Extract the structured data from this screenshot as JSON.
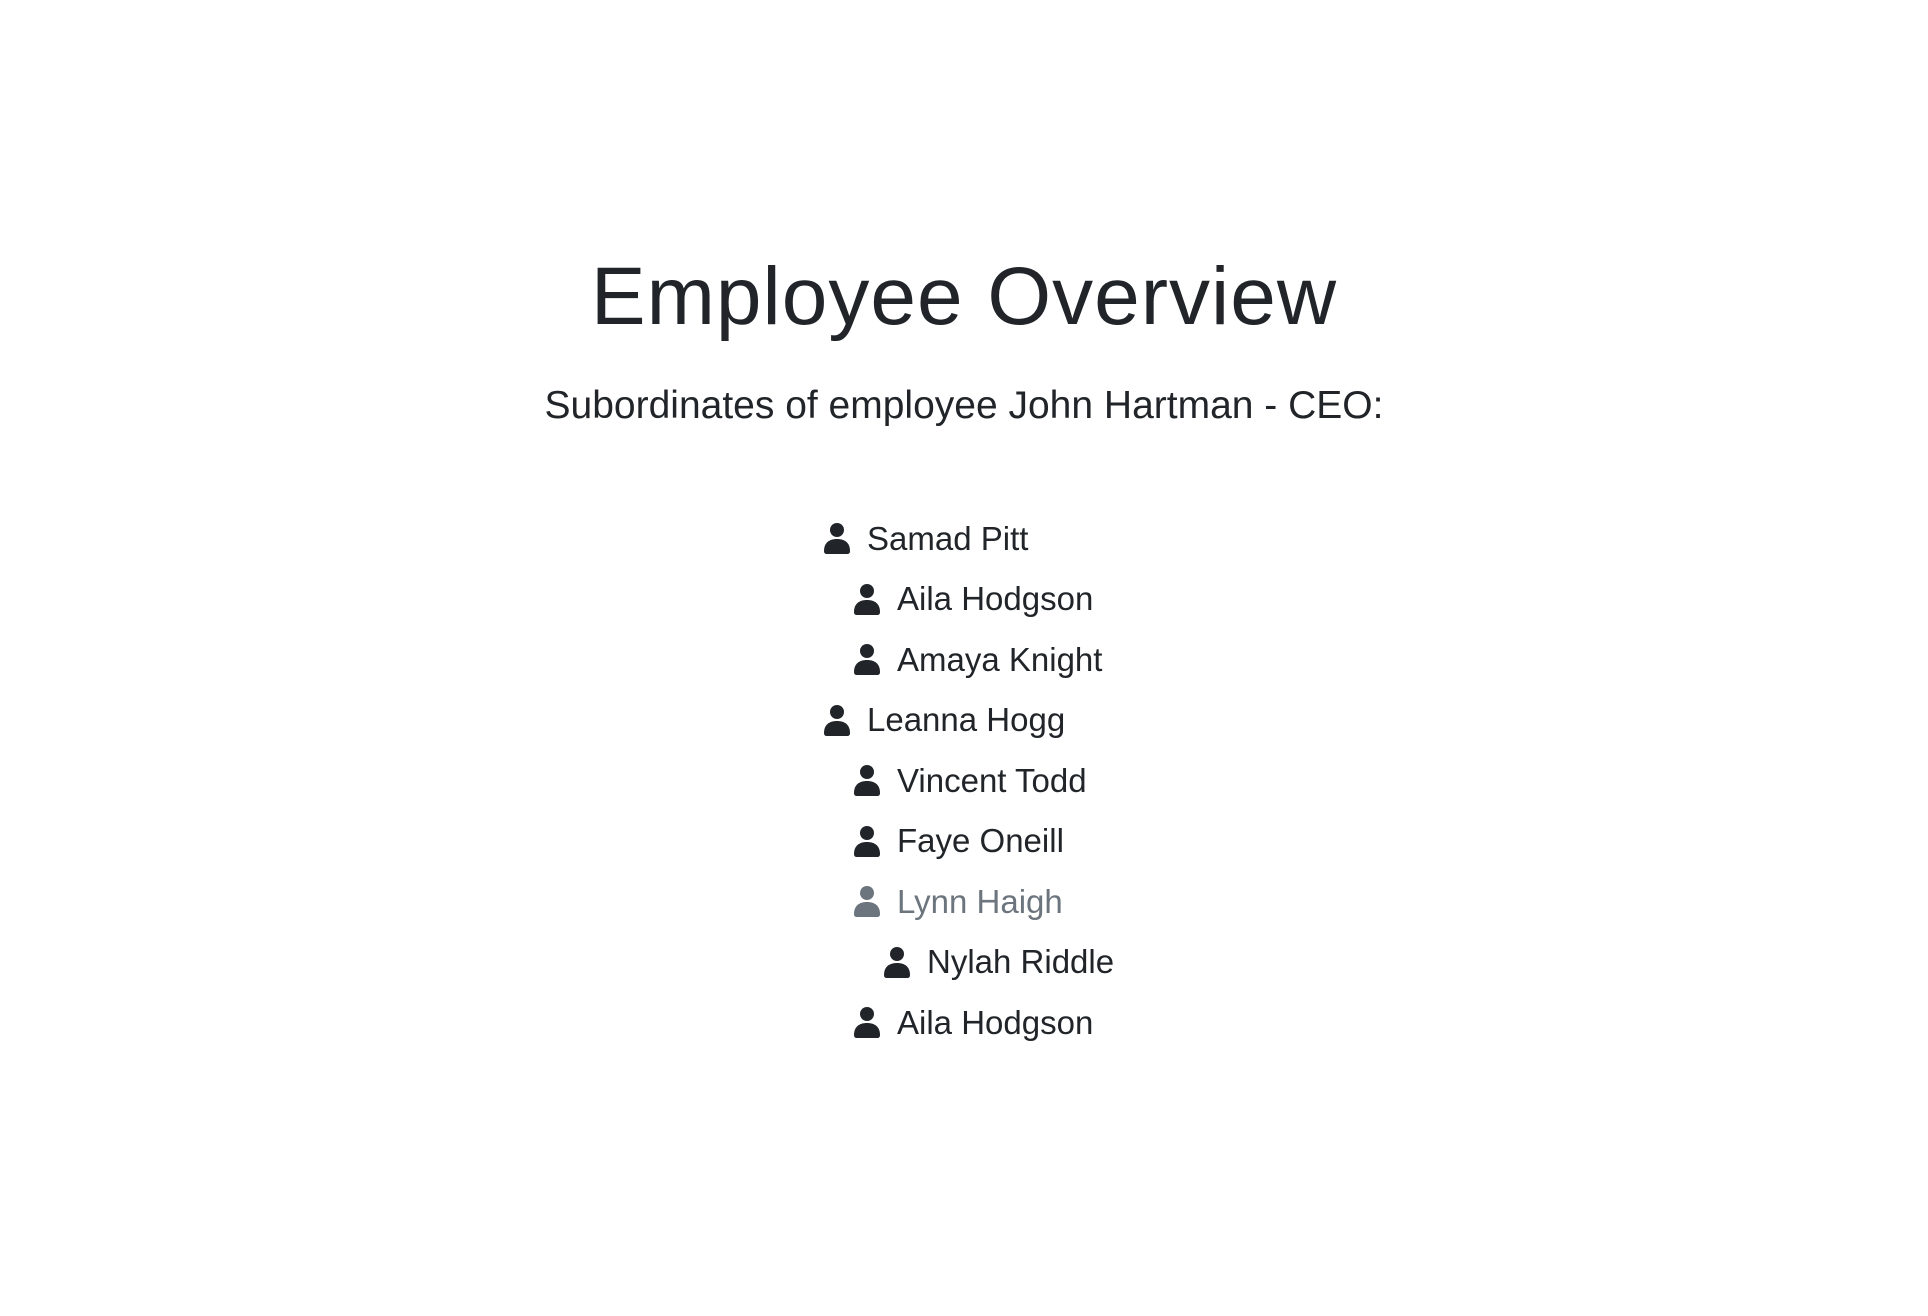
{
  "page": {
    "title": "Employee Overview",
    "subtitle": "Subordinates of employee John Hartman - CEO:"
  },
  "colors": {
    "text": "#212529",
    "muted": "#6c757d",
    "background": "#ffffff"
  },
  "tree": {
    "items": [
      {
        "name": "Samad Pitt",
        "level": 0,
        "muted": false,
        "icon": "user-icon"
      },
      {
        "name": "Aila Hodgson",
        "level": 1,
        "muted": false,
        "icon": "user-icon"
      },
      {
        "name": "Amaya Knight",
        "level": 1,
        "muted": false,
        "icon": "user-icon"
      },
      {
        "name": "Leanna Hogg",
        "level": 0,
        "muted": false,
        "icon": "user-icon"
      },
      {
        "name": "Vincent Todd",
        "level": 1,
        "muted": false,
        "icon": "user-icon"
      },
      {
        "name": "Faye Oneill",
        "level": 1,
        "muted": false,
        "icon": "user-icon"
      },
      {
        "name": "Lynn Haigh",
        "level": 1,
        "muted": true,
        "icon": "user-icon"
      },
      {
        "name": "Nylah Riddle",
        "level": 2,
        "muted": false,
        "icon": "user-icon"
      },
      {
        "name": "Aila Hodgson",
        "level": 1,
        "muted": false,
        "icon": "user-icon"
      }
    ]
  }
}
